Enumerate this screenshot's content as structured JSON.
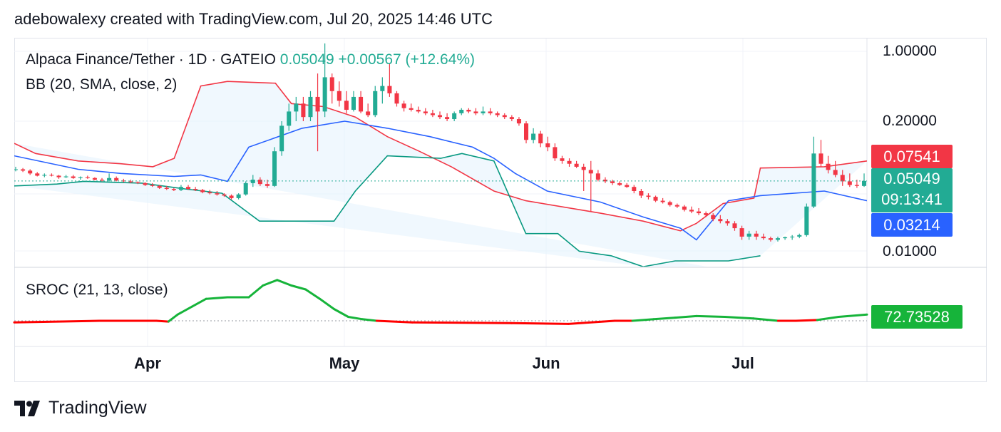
{
  "header": {
    "attribution": "adebowalexy created with TradingView.com, Jul 20, 2025 14:46 UTC"
  },
  "legend": {
    "symbol": "Alpaca Finance/Tether · 1D · GATEIO",
    "last_price": "0.05049",
    "change": "+0.00567 (+12.64%)",
    "bb": "BB (20, SMA, close, 2)",
    "sroc": "SROC (21, 13, close)"
  },
  "price_axis": {
    "labels": [
      "1.00000",
      "0.20000",
      "0.01000"
    ]
  },
  "badges": {
    "upper": "0.07541",
    "last": "0.05049",
    "countdown": "09:13:41",
    "lower": "0.03214",
    "sroc": "72.73528"
  },
  "time_axis": {
    "labels": [
      "Apr",
      "May",
      "Jun",
      "Jul"
    ]
  },
  "footer": {
    "brand": "TradingView"
  },
  "colors": {
    "up": "#22ab94",
    "down": "#f23645",
    "bb_upper": "#f23645",
    "bb_basis": "#2962ff",
    "bb_lower": "#089981",
    "sroc_pos": "#16b43a",
    "sroc_neg": "#ff0000"
  },
  "chart_data": {
    "type": "candlestick",
    "title": "Alpaca Finance/Tether · 1D · GATEIO",
    "y_scale": "log",
    "ylim": [
      0.008,
      1.2
    ],
    "x_ticks": [
      "Apr",
      "May",
      "Jun",
      "Jul"
    ],
    "start_date": "2025-03-15",
    "candles": [
      [
        0.065,
        0.07,
        0.063,
        0.066
      ],
      [
        0.066,
        0.068,
        0.062,
        0.064
      ],
      [
        0.064,
        0.066,
        0.058,
        0.06
      ],
      [
        0.06,
        0.062,
        0.056,
        0.057
      ],
      [
        0.057,
        0.06,
        0.055,
        0.058
      ],
      [
        0.058,
        0.06,
        0.056,
        0.057
      ],
      [
        0.057,
        0.058,
        0.053,
        0.055
      ],
      [
        0.055,
        0.058,
        0.054,
        0.056
      ],
      [
        0.056,
        0.058,
        0.053,
        0.054
      ],
      [
        0.054,
        0.056,
        0.052,
        0.055
      ],
      [
        0.055,
        0.057,
        0.053,
        0.054
      ],
      [
        0.054,
        0.055,
        0.051,
        0.052
      ],
      [
        0.052,
        0.054,
        0.05,
        0.051
      ],
      [
        0.051,
        0.06,
        0.05,
        0.054
      ],
      [
        0.054,
        0.056,
        0.05,
        0.051
      ],
      [
        0.051,
        0.053,
        0.049,
        0.05
      ],
      [
        0.05,
        0.052,
        0.048,
        0.049
      ],
      [
        0.049,
        0.05,
        0.047,
        0.048
      ],
      [
        0.048,
        0.049,
        0.045,
        0.046
      ],
      [
        0.046,
        0.048,
        0.044,
        0.045
      ],
      [
        0.045,
        0.046,
        0.042,
        0.043
      ],
      [
        0.043,
        0.045,
        0.041,
        0.042
      ],
      [
        0.042,
        0.043,
        0.04,
        0.041
      ],
      [
        0.041,
        0.046,
        0.04,
        0.044
      ],
      [
        0.044,
        0.046,
        0.041,
        0.042
      ],
      [
        0.042,
        0.044,
        0.04,
        0.041
      ],
      [
        0.041,
        0.042,
        0.038,
        0.039
      ],
      [
        0.039,
        0.041,
        0.037,
        0.038
      ],
      [
        0.038,
        0.04,
        0.036,
        0.037
      ],
      [
        0.037,
        0.038,
        0.035,
        0.036
      ],
      [
        0.036,
        0.037,
        0.033,
        0.034
      ],
      [
        0.034,
        0.038,
        0.033,
        0.037
      ],
      [
        0.037,
        0.05,
        0.036,
        0.048
      ],
      [
        0.048,
        0.058,
        0.044,
        0.052
      ],
      [
        0.052,
        0.055,
        0.045,
        0.047
      ],
      [
        0.047,
        0.052,
        0.043,
        0.045
      ],
      [
        0.045,
        0.11,
        0.044,
        0.1
      ],
      [
        0.1,
        0.2,
        0.09,
        0.18
      ],
      [
        0.18,
        0.3,
        0.16,
        0.25
      ],
      [
        0.25,
        0.35,
        0.2,
        0.3
      ],
      [
        0.3,
        0.35,
        0.2,
        0.22
      ],
      [
        0.22,
        0.4,
        0.2,
        0.35
      ],
      [
        0.35,
        0.6,
        0.1,
        0.25
      ],
      [
        0.25,
        1.2,
        0.22,
        0.55
      ],
      [
        0.55,
        0.6,
        0.3,
        0.4
      ],
      [
        0.4,
        0.5,
        0.28,
        0.32
      ],
      [
        0.32,
        0.4,
        0.24,
        0.26
      ],
      [
        0.26,
        0.4,
        0.25,
        0.35
      ],
      [
        0.35,
        0.4,
        0.24,
        0.25
      ],
      [
        0.25,
        0.3,
        0.22,
        0.23
      ],
      [
        0.23,
        0.45,
        0.22,
        0.4
      ],
      [
        0.4,
        0.55,
        0.3,
        0.45
      ],
      [
        0.45,
        0.75,
        0.35,
        0.38
      ],
      [
        0.38,
        0.4,
        0.28,
        0.3
      ],
      [
        0.3,
        0.32,
        0.25,
        0.27
      ],
      [
        0.27,
        0.3,
        0.25,
        0.26
      ],
      [
        0.26,
        0.28,
        0.24,
        0.25
      ],
      [
        0.25,
        0.27,
        0.23,
        0.24
      ],
      [
        0.24,
        0.26,
        0.22,
        0.23
      ],
      [
        0.23,
        0.25,
        0.21,
        0.22
      ],
      [
        0.22,
        0.24,
        0.2,
        0.21
      ],
      [
        0.21,
        0.25,
        0.2,
        0.24
      ],
      [
        0.24,
        0.27,
        0.23,
        0.26
      ],
      [
        0.26,
        0.27,
        0.24,
        0.25
      ],
      [
        0.25,
        0.27,
        0.23,
        0.24
      ],
      [
        0.24,
        0.28,
        0.23,
        0.25
      ],
      [
        0.25,
        0.27,
        0.23,
        0.24
      ],
      [
        0.24,
        0.25,
        0.22,
        0.23
      ],
      [
        0.23,
        0.24,
        0.21,
        0.22
      ],
      [
        0.22,
        0.23,
        0.2,
        0.21
      ],
      [
        0.21,
        0.22,
        0.18,
        0.19
      ],
      [
        0.19,
        0.2,
        0.12,
        0.13
      ],
      [
        0.13,
        0.17,
        0.12,
        0.15
      ],
      [
        0.15,
        0.16,
        0.11,
        0.12
      ],
      [
        0.12,
        0.14,
        0.1,
        0.11
      ],
      [
        0.11,
        0.12,
        0.08,
        0.085
      ],
      [
        0.085,
        0.09,
        0.075,
        0.08
      ],
      [
        0.08,
        0.085,
        0.07,
        0.075
      ],
      [
        0.075,
        0.08,
        0.068,
        0.07
      ],
      [
        0.07,
        0.075,
        0.04,
        0.065
      ],
      [
        0.065,
        0.08,
        0.025,
        0.06
      ],
      [
        0.06,
        0.065,
        0.05,
        0.052
      ],
      [
        0.052,
        0.055,
        0.048,
        0.05
      ],
      [
        0.05,
        0.052,
        0.046,
        0.048
      ],
      [
        0.048,
        0.05,
        0.045,
        0.046
      ],
      [
        0.046,
        0.048,
        0.043,
        0.044
      ],
      [
        0.044,
        0.046,
        0.038,
        0.04
      ],
      [
        0.04,
        0.042,
        0.034,
        0.036
      ],
      [
        0.036,
        0.038,
        0.033,
        0.035
      ],
      [
        0.035,
        0.036,
        0.031,
        0.032
      ],
      [
        0.032,
        0.034,
        0.03,
        0.031
      ],
      [
        0.031,
        0.032,
        0.028,
        0.029
      ],
      [
        0.029,
        0.03,
        0.027,
        0.028
      ],
      [
        0.028,
        0.029,
        0.025,
        0.026
      ],
      [
        0.026,
        0.028,
        0.024,
        0.025
      ],
      [
        0.025,
        0.027,
        0.023,
        0.024
      ],
      [
        0.024,
        0.025,
        0.022,
        0.023
      ],
      [
        0.023,
        0.024,
        0.02,
        0.021
      ],
      [
        0.021,
        0.023,
        0.019,
        0.02
      ],
      [
        0.02,
        0.021,
        0.018,
        0.019
      ],
      [
        0.019,
        0.02,
        0.016,
        0.017
      ],
      [
        0.017,
        0.018,
        0.013,
        0.014
      ],
      [
        0.014,
        0.016,
        0.013,
        0.015
      ],
      [
        0.015,
        0.016,
        0.013,
        0.014
      ],
      [
        0.014,
        0.015,
        0.013,
        0.0135
      ],
      [
        0.0135,
        0.014,
        0.0125,
        0.013
      ],
      [
        0.013,
        0.014,
        0.0125,
        0.0135
      ],
      [
        0.0135,
        0.014,
        0.013,
        0.0138
      ],
      [
        0.0138,
        0.0145,
        0.013,
        0.014
      ],
      [
        0.014,
        0.015,
        0.0135,
        0.0145
      ],
      [
        0.0145,
        0.03,
        0.014,
        0.028
      ],
      [
        0.028,
        0.14,
        0.027,
        0.095
      ],
      [
        0.095,
        0.13,
        0.07,
        0.075
      ],
      [
        0.075,
        0.09,
        0.06,
        0.065
      ],
      [
        0.065,
        0.08,
        0.055,
        0.058
      ],
      [
        0.058,
        0.065,
        0.045,
        0.05
      ],
      [
        0.05,
        0.06,
        0.044,
        0.046
      ],
      [
        0.046,
        0.052,
        0.043,
        0.045
      ],
      [
        0.045,
        0.06,
        0.044,
        0.05049
      ]
    ],
    "bb_upper": [
      [
        0,
        0.12
      ],
      [
        20,
        0.095
      ],
      [
        60,
        0.08
      ],
      [
        100,
        0.075
      ],
      [
        130,
        0.07
      ],
      [
        150,
        0.085
      ],
      [
        175,
        0.45
      ],
      [
        200,
        0.5
      ],
      [
        245,
        0.48
      ],
      [
        260,
        0.3
      ],
      [
        290,
        0.28
      ],
      [
        320,
        0.22
      ],
      [
        350,
        0.14
      ],
      [
        380,
        0.1
      ],
      [
        410,
        0.07
      ],
      [
        450,
        0.04
      ],
      [
        480,
        0.032
      ],
      [
        550,
        0.024
      ],
      [
        590,
        0.02
      ],
      [
        625,
        0.016
      ],
      [
        640,
        0.019
      ],
      [
        665,
        0.03
      ],
      [
        694,
        0.034
      ],
      [
        700,
        0.068
      ],
      [
        760,
        0.07
      ],
      [
        800,
        0.08
      ]
    ],
    "bb_basis": [
      [
        0,
        0.09
      ],
      [
        60,
        0.066
      ],
      [
        100,
        0.06
      ],
      [
        150,
        0.056
      ],
      [
        175,
        0.058
      ],
      [
        200,
        0.05
      ],
      [
        220,
        0.11
      ],
      [
        270,
        0.17
      ],
      [
        310,
        0.2
      ],
      [
        350,
        0.17
      ],
      [
        390,
        0.14
      ],
      [
        430,
        0.11
      ],
      [
        450,
        0.085
      ],
      [
        470,
        0.06
      ],
      [
        500,
        0.04
      ],
      [
        550,
        0.031
      ],
      [
        590,
        0.022
      ],
      [
        625,
        0.017
      ],
      [
        640,
        0.013
      ],
      [
        670,
        0.032
      ],
      [
        700,
        0.036
      ],
      [
        760,
        0.04
      ],
      [
        800,
        0.032
      ]
    ],
    "bb_lower": [
      [
        0,
        0.045
      ],
      [
        40,
        0.047
      ],
      [
        65,
        0.05
      ],
      [
        120,
        0.048
      ],
      [
        160,
        0.042
      ],
      [
        195,
        0.038
      ],
      [
        230,
        0.02
      ],
      [
        300,
        0.02
      ],
      [
        320,
        0.04
      ],
      [
        350,
        0.09
      ],
      [
        400,
        0.085
      ],
      [
        420,
        0.095
      ],
      [
        450,
        0.08
      ],
      [
        480,
        0.015
      ],
      [
        510,
        0.015
      ],
      [
        530,
        0.01
      ],
      [
        560,
        0.009
      ],
      [
        590,
        0.007
      ],
      [
        620,
        0.008
      ],
      [
        640,
        0.008
      ],
      [
        670,
        0.008
      ],
      [
        700,
        0.009
      ]
    ],
    "sroc": {
      "badge_value": 72.73528,
      "points": [
        [
          0,
          -2
        ],
        [
          120,
          0
        ],
        [
          200,
          0
        ],
        [
          217,
          -1
        ],
        [
          230,
          8
        ],
        [
          250,
          18
        ],
        [
          270,
          28
        ],
        [
          300,
          30
        ],
        [
          330,
          30
        ],
        [
          350,
          45
        ],
        [
          370,
          52
        ],
        [
          390,
          45
        ],
        [
          410,
          40
        ],
        [
          430,
          28
        ],
        [
          450,
          15
        ],
        [
          470,
          5
        ],
        [
          490,
          2
        ],
        [
          510,
          0
        ],
        [
          560,
          -2
        ],
        [
          700,
          -3
        ],
        [
          780,
          -4
        ],
        [
          845,
          0
        ],
        [
          870,
          0
        ],
        [
          900,
          2
        ],
        [
          930,
          4
        ],
        [
          960,
          6
        ],
        [
          1000,
          5
        ],
        [
          1040,
          3
        ],
        [
          1075,
          0
        ],
        [
          1100,
          0
        ],
        [
          1130,
          1
        ],
        [
          1160,
          5
        ],
        [
          1200,
          8
        ]
      ]
    }
  }
}
